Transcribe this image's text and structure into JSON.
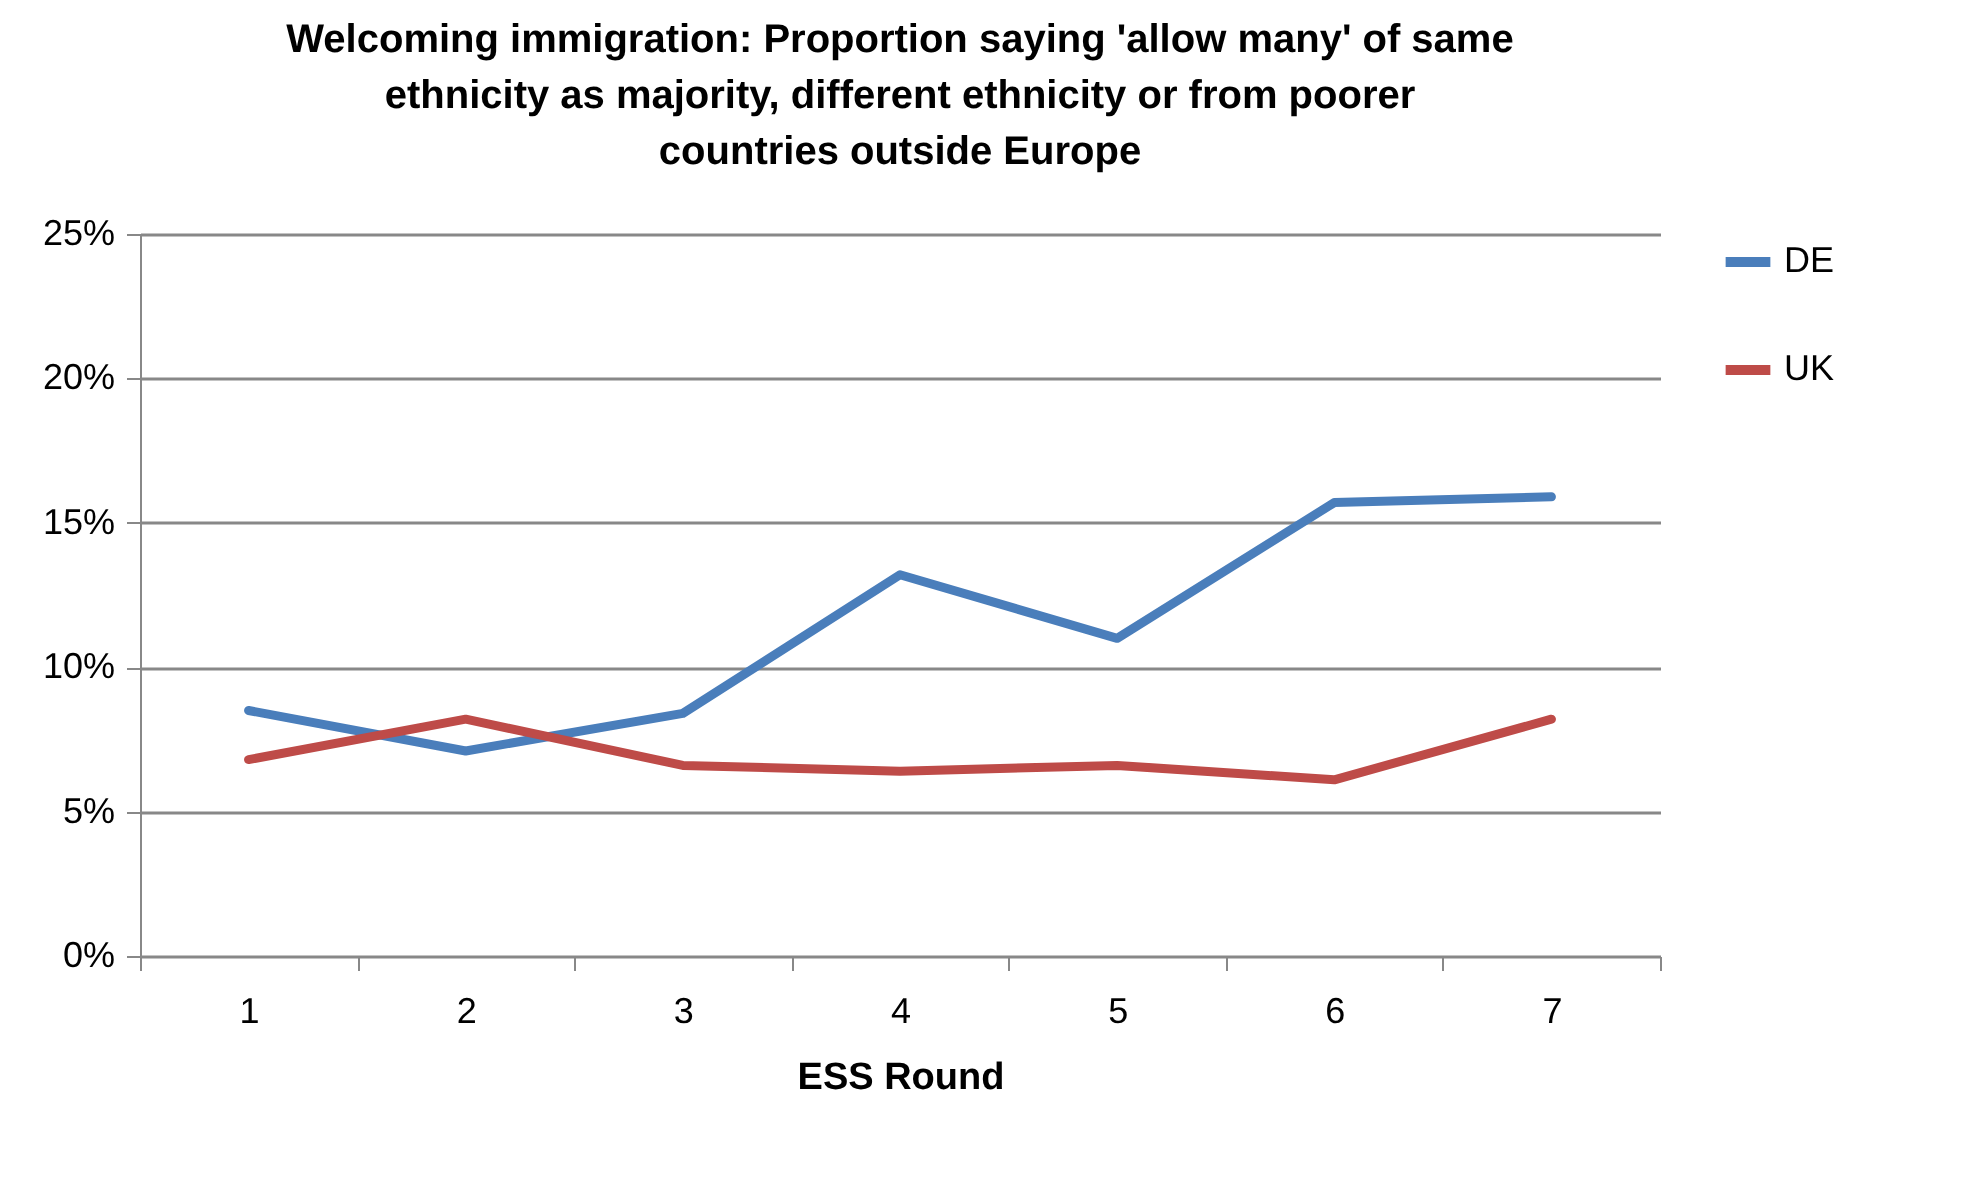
{
  "chart_data": {
    "type": "line",
    "title": "Welcoming immigration: Proportion saying 'allow many' of same ethnicity as majority, different ethnicity or from poorer countries outside Europe",
    "xlabel": "ESS Round",
    "categories": [
      "1",
      "2",
      "3",
      "4",
      "5",
      "6",
      "7"
    ],
    "series": [
      {
        "name": "DE",
        "color": "#4a7ebb",
        "values": [
          8.5,
          7.1,
          8.4,
          13.2,
          11.0,
          15.7,
          15.9
        ]
      },
      {
        "name": "UK",
        "color": "#be4b48",
        "values": [
          6.8,
          8.2,
          6.6,
          6.4,
          6.6,
          6.1,
          8.2
        ]
      }
    ],
    "ylim": [
      0,
      25
    ],
    "yticks": [
      {
        "value": 0,
        "label": "0%"
      },
      {
        "value": 5,
        "label": "5%"
      },
      {
        "value": 10,
        "label": "10%"
      },
      {
        "value": 15,
        "label": "15%"
      },
      {
        "value": 20,
        "label": "20%"
      },
      {
        "value": 25,
        "label": "25%"
      }
    ],
    "grid": "y",
    "legend": "right",
    "marker": "none",
    "line_style": "solid"
  }
}
